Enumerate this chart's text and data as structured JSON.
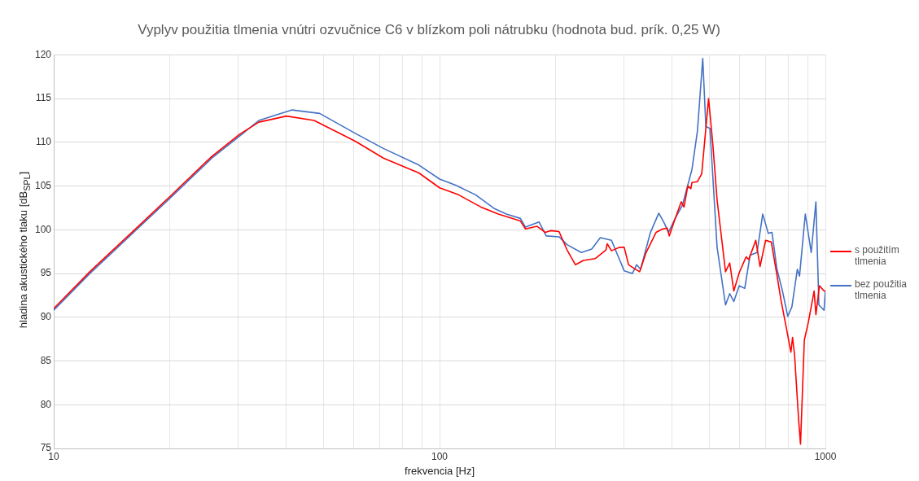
{
  "chart_data": {
    "type": "line",
    "title": "Vyplyv použitia tlmenia vnútri ozvučnice C6 v blízkom poli nátrubku (hodnota bud. prík. 0,25 W)",
    "xlabel": "frekvencia [Hz]",
    "ylabel": "hladina akustického tlaku [dB$_{SPL}$]",
    "log": "x",
    "grid": true,
    "legend": "right",
    "marker": "none",
    "line_style": "solid",
    "xlim": [
      10,
      1000
    ],
    "xticks": [
      10,
      {
        "value": 20,
        "label": null
      },
      {
        "value": 30,
        "label": null
      },
      {
        "value": 40,
        "label": null
      },
      {
        "value": 50,
        "label": null
      },
      {
        "value": 60,
        "label": null
      },
      {
        "value": 70,
        "label": null
      },
      {
        "value": 80,
        "label": null
      },
      {
        "value": 90,
        "label": null
      },
      100,
      {
        "value": 200,
        "label": null
      },
      {
        "value": 300,
        "label": null
      },
      {
        "value": 400,
        "label": null
      },
      {
        "value": 500,
        "label": null
      },
      {
        "value": 600,
        "label": null
      },
      {
        "value": 700,
        "label": null
      },
      {
        "value": 800,
        "label": null
      },
      {
        "value": 900,
        "label": null
      },
      1000
    ],
    "ylim": [
      75,
      120
    ],
    "yticks": [
      75,
      80,
      85,
      90,
      95,
      100,
      105,
      110,
      115,
      120
    ],
    "series": [
      {
        "name": "s použitím tlmenia",
        "color": "#ff0000",
        "x": [
          10,
          12.4,
          16.2,
          20,
          25.7,
          30.3,
          34,
          40.1,
          47.3,
          60.6,
          71.5,
          88.4,
          100,
          112,
          128,
          142,
          162,
          167,
          179,
          188,
          194,
          204,
          214,
          225,
          236,
          253,
          270,
          272,
          279,
          293,
          301,
          309,
          319,
          330,
          343,
          364,
          379,
          389,
          394,
          406,
          423,
          430,
          440,
          448,
          451,
          466,
          478,
          498,
          511,
          524,
          551,
          565,
          579,
          598,
          623,
          633,
          660,
          677,
          700,
          724,
          749,
          767,
          792,
          814,
          822,
          832,
          852,
          862,
          882,
          904,
          935,
          945,
          965,
          992,
          1000
        ],
        "values": [
          91.0,
          95.2,
          100.0,
          103.8,
          108.4,
          110.9,
          112.3,
          113.0,
          112.5,
          110.1,
          108.2,
          106.5,
          104.8,
          104.0,
          102.6,
          101.8,
          101.0,
          100.1,
          100.4,
          99.7,
          99.9,
          99.8,
          97.7,
          96.0,
          96.5,
          96.7,
          97.7,
          98.4,
          97.6,
          98.0,
          98.0,
          96.0,
          95.6,
          95.2,
          97.4,
          99.7,
          100.1,
          100.2,
          99.3,
          101.0,
          103.2,
          102.6,
          105.0,
          104.7,
          105.4,
          105.5,
          106.4,
          115.0,
          109.7,
          103.4,
          95.2,
          96.2,
          93.0,
          95.1,
          96.9,
          96.6,
          98.8,
          95.8,
          98.8,
          98.6,
          94.8,
          92.0,
          88.8,
          86.0,
          87.7,
          85.7,
          78.4,
          75.5,
          87.4,
          89.5,
          93.0,
          90.3,
          93.6,
          93.0,
          93.0
        ]
      },
      {
        "name": "bez použitia tlmenia",
        "color": "#4472c4",
        "x": [
          10,
          12.4,
          16.2,
          20,
          25.7,
          30.3,
          34,
          41.5,
          48.9,
          60.6,
          71.5,
          88.4,
          100,
          110,
          124,
          139,
          149,
          162,
          167,
          181,
          189,
          204,
          214,
          233,
          248,
          261,
          279,
          301,
          316,
          324,
          332,
          352,
          370,
          383,
          392,
          409,
          426,
          451,
          466,
          481,
          490,
          502,
          524,
          551,
          565,
          579,
          598,
          618,
          638,
          665,
          688,
          711,
          727,
          749,
          774,
          799,
          819,
          846,
          857,
          887,
          919,
          945,
          962,
          992,
          1000
        ],
        "values": [
          90.8,
          95.0,
          99.8,
          103.6,
          108.2,
          110.7,
          112.5,
          113.7,
          113.3,
          111.0,
          109.3,
          107.4,
          105.8,
          105.1,
          104.0,
          102.4,
          101.8,
          101.3,
          100.3,
          100.9,
          99.3,
          99.2,
          98.3,
          97.4,
          97.8,
          99.1,
          98.8,
          95.3,
          95.0,
          96.0,
          95.5,
          99.7,
          101.9,
          100.7,
          99.7,
          101.4,
          102.8,
          106.9,
          111.3,
          119.6,
          111.8,
          111.6,
          98.0,
          91.4,
          92.7,
          91.8,
          93.6,
          93.3,
          97.1,
          97.4,
          101.8,
          99.6,
          99.7,
          95.5,
          93.0,
          90.1,
          91.2,
          95.5,
          94.7,
          101.8,
          97.4,
          103.2,
          91.4,
          90.8,
          93.1
        ]
      }
    ]
  }
}
